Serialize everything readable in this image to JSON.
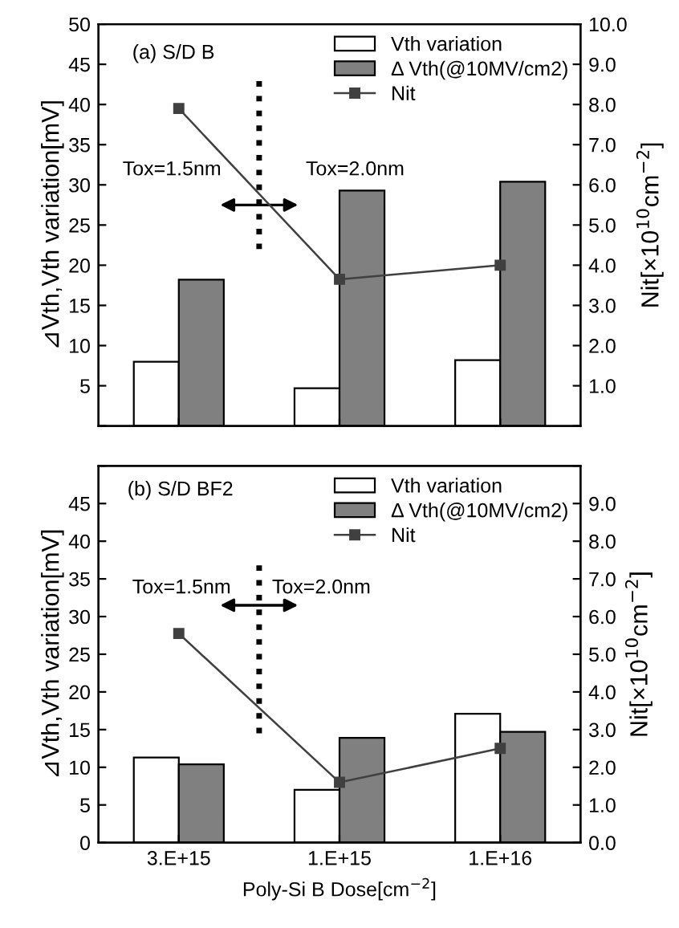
{
  "chart_data": [
    {
      "type": "bar",
      "categories": [
        "3.E+15",
        "1.E+15",
        "1.E+16"
      ],
      "tick_labels": "y",
      "ylabel": "⊿Vth,Vth variation[mV]",
      "y2label": "Nit[×10$^{10}$cm$^{−2}$]",
      "ylim": [
        0,
        50
      ],
      "yticks": [
        {
          "value": 0,
          "label": null
        },
        5,
        10,
        15,
        20,
        25,
        30,
        35,
        40,
        45,
        50
      ],
      "y2lim": [
        0,
        10
      ],
      "y2ticks": [
        {
          "value": 0,
          "label": null
        },
        {
          "value": 1,
          "label": "1.0"
        },
        {
          "value": 2,
          "label": "2.0"
        },
        {
          "value": 3,
          "label": "3.0"
        },
        {
          "value": 4,
          "label": "4.0"
        },
        {
          "value": 5,
          "label": "5.0"
        },
        {
          "value": 6,
          "label": "6.0"
        },
        {
          "value": 7,
          "label": "7.0"
        },
        {
          "value": 8,
          "label": "8.0"
        },
        {
          "value": 9,
          "label": "9.0"
        },
        {
          "value": 10,
          "label": "10.0"
        }
      ],
      "annotations": [
        "(a) S/D B",
        "Tox=1.5nm",
        "Tox=2.0nm"
      ],
      "legend": "top right",
      "grid": false,
      "series": [
        {
          "name": "Vth variation",
          "color": "#ffffff",
          "values": [
            8.0,
            4.7,
            8.2
          ]
        },
        {
          "name": "Δ Vth(@10MV/cm2)",
          "color": "#808080",
          "values": [
            18.2,
            29.3,
            30.4
          ]
        },
        {
          "name": "Nit",
          "type": "line",
          "axis": "y2",
          "color": "#404040",
          "marker": "square",
          "values": [
            7.9,
            3.65,
            4.0
          ]
        }
      ]
    },
    {
      "type": "bar",
      "categories": [
        "3.E+15",
        "1.E+15",
        "1.E+16"
      ],
      "xlabel": "Poly-Si B Dose[cm$^{−2}$]",
      "ylabel": "⊿Vth,Vth variation[mV]",
      "y2label": "Nit[×10$^{10}$cm$^{−2}$]",
      "ylim": [
        0,
        50
      ],
      "yticks": [
        0,
        5,
        10,
        15,
        20,
        25,
        30,
        35,
        40,
        45,
        {
          "value": 50,
          "label": null
        }
      ],
      "y2lim": [
        0,
        10
      ],
      "y2ticks": [
        {
          "value": 0,
          "label": "0.0"
        },
        {
          "value": 1,
          "label": "1.0"
        },
        {
          "value": 2,
          "label": "2.0"
        },
        {
          "value": 3,
          "label": "3.0"
        },
        {
          "value": 4,
          "label": "4.0"
        },
        {
          "value": 5,
          "label": "5.0"
        },
        {
          "value": 6,
          "label": "6.0"
        },
        {
          "value": 7,
          "label": "7.0"
        },
        {
          "value": 8,
          "label": "8.0"
        },
        {
          "value": 9,
          "label": "9.0"
        },
        {
          "value": 10,
          "label": null
        }
      ],
      "annotations": [
        "(b) S/D BF2",
        "Tox=1.5nm",
        "Tox=2.0nm"
      ],
      "legend": "top right",
      "grid": false,
      "series": [
        {
          "name": "Vth variation",
          "color": "#ffffff",
          "values": [
            11.3,
            7.0,
            17.1
          ]
        },
        {
          "name": "Δ Vth(@10MV/cm2)",
          "color": "#808080",
          "values": [
            10.4,
            13.9,
            14.7
          ]
        },
        {
          "name": "Nit",
          "type": "line",
          "axis": "y2",
          "color": "#404040",
          "marker": "square",
          "values": [
            5.55,
            1.6,
            2.5
          ]
        }
      ]
    }
  ]
}
